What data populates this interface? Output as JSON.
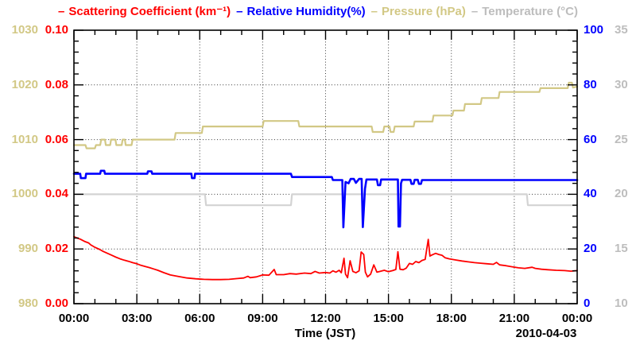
{
  "legend": {
    "items": [
      {
        "dash": "–",
        "label": "Scattering Coefficient (km⁻¹)",
        "color": "#ff0000"
      },
      {
        "dash": "–",
        "label": "Relative Humidity(%)",
        "color": "#0000ff"
      },
      {
        "dash": "–",
        "label": "Pressure (hPa)",
        "color": "#d2c885"
      },
      {
        "dash": "–",
        "label": "Temperature (°C)",
        "color": "#bdbdbd"
      }
    ]
  },
  "chart_data": {
    "type": "line",
    "x_axis": {
      "label": "Time (JST)",
      "date": "2010-04-03",
      "min_hours": 0,
      "max_hours": 24,
      "major_tick_hours": 3,
      "minor_tick_hours": 1,
      "tick_labels": [
        "00:00",
        "03:00",
        "06:00",
        "09:00",
        "12:00",
        "15:00",
        "18:00",
        "21:00",
        "00:00"
      ]
    },
    "grid": {
      "vertical": "every 3 hours, dotted",
      "horizontal": "every major division, dotted"
    },
    "y_axes": [
      {
        "id": "pressure",
        "name": "Pressure (hPa)",
        "side": "left-outer",
        "min": 980,
        "max": 1030,
        "tick_labels": [
          "1030",
          "1020",
          "1010",
          "1000",
          "990",
          "980"
        ],
        "color": "#d2c885"
      },
      {
        "id": "scattering",
        "name": "Scattering Coefficient (km⁻¹)",
        "side": "left-inner",
        "min": 0,
        "max": 0.1,
        "tick_labels": [
          "0.10",
          "0.08",
          "0.06",
          "0.04",
          "0.02",
          "0.00"
        ],
        "color": "#ff0000"
      },
      {
        "id": "humidity",
        "name": "Relative Humidity(%)",
        "side": "right-inner",
        "min": 0,
        "max": 100,
        "tick_labels": [
          "100",
          "80",
          "60",
          "40",
          "20",
          "0"
        ],
        "color": "#0000ff"
      },
      {
        "id": "temperature",
        "name": "Temperature (°C)",
        "side": "right-outer",
        "min": 10,
        "max": 35,
        "tick_labels": [
          "35",
          "30",
          "25",
          "20",
          "15",
          "10"
        ],
        "color": "#bdbdbd"
      }
    ],
    "series": [
      {
        "name": "Pressure",
        "axis": "pressure",
        "color": "#d2c885",
        "width": 2.2,
        "points": [
          [
            0,
            1009
          ],
          [
            0.55,
            1009
          ],
          [
            0.6,
            1008.4
          ],
          [
            1.0,
            1008.4
          ],
          [
            1.05,
            1009
          ],
          [
            1.25,
            1009
          ],
          [
            1.3,
            1010
          ],
          [
            1.48,
            1010
          ],
          [
            1.52,
            1009
          ],
          [
            1.73,
            1009
          ],
          [
            1.77,
            1010
          ],
          [
            1.98,
            1010
          ],
          [
            2.02,
            1009
          ],
          [
            2.28,
            1009
          ],
          [
            2.32,
            1010
          ],
          [
            2.43,
            1010
          ],
          [
            2.47,
            1009
          ],
          [
            2.75,
            1009
          ],
          [
            2.8,
            1010
          ],
          [
            4.8,
            1010
          ],
          [
            4.85,
            1011.2
          ],
          [
            6.1,
            1011.2
          ],
          [
            6.15,
            1012.4
          ],
          [
            9.0,
            1012.4
          ],
          [
            9.05,
            1013.4
          ],
          [
            10.7,
            1013.4
          ],
          [
            10.75,
            1012.4
          ],
          [
            14.2,
            1012.4
          ],
          [
            14.25,
            1011.4
          ],
          [
            14.75,
            1011.4
          ],
          [
            14.8,
            1012.4
          ],
          [
            15.05,
            1012.4
          ],
          [
            15.1,
            1011.4
          ],
          [
            15.25,
            1011.4
          ],
          [
            15.3,
            1012.4
          ],
          [
            16.2,
            1012.4
          ],
          [
            16.25,
            1013.3
          ],
          [
            17.1,
            1013.3
          ],
          [
            17.15,
            1014.4
          ],
          [
            18.05,
            1014.4
          ],
          [
            18.1,
            1015.3
          ],
          [
            18.6,
            1015.3
          ],
          [
            18.65,
            1016.5
          ],
          [
            19.4,
            1016.5
          ],
          [
            19.45,
            1017.6
          ],
          [
            20.25,
            1017.6
          ],
          [
            20.3,
            1018.7
          ],
          [
            22.2,
            1018.7
          ],
          [
            22.25,
            1019.4
          ],
          [
            23.55,
            1019.4
          ],
          [
            23.6,
            1020.4
          ],
          [
            23.75,
            1020.4
          ],
          [
            23.8,
            1019.5
          ],
          [
            24,
            1019.7
          ]
        ]
      },
      {
        "name": "Temperature",
        "axis": "temperature",
        "color": "#d3d3d3",
        "width": 2.2,
        "points": [
          [
            0,
            20
          ],
          [
            6.25,
            20
          ],
          [
            6.3,
            19
          ],
          [
            10.35,
            19
          ],
          [
            10.4,
            20
          ],
          [
            21.6,
            20
          ],
          [
            21.65,
            19
          ],
          [
            24,
            19
          ]
        ]
      },
      {
        "name": "Relative Humidity",
        "axis": "humidity",
        "color": "#0000ff",
        "width": 2.6,
        "points": [
          [
            0,
            47.5
          ],
          [
            0.3,
            47.5
          ],
          [
            0.33,
            45.9
          ],
          [
            0.55,
            45.9
          ],
          [
            0.58,
            47.5
          ],
          [
            1.25,
            47.5
          ],
          [
            1.28,
            48.6
          ],
          [
            1.45,
            48.6
          ],
          [
            1.48,
            47.5
          ],
          [
            3.5,
            47.5
          ],
          [
            3.53,
            48.4
          ],
          [
            3.7,
            48.4
          ],
          [
            3.73,
            47.5
          ],
          [
            5.6,
            47.5
          ],
          [
            5.63,
            45.9
          ],
          [
            5.75,
            45.9
          ],
          [
            5.78,
            47.5
          ],
          [
            10.35,
            47.5
          ],
          [
            10.4,
            46.3
          ],
          [
            12.3,
            46.3
          ],
          [
            12.35,
            45.2
          ],
          [
            12.8,
            45.2
          ],
          [
            12.85,
            27.9
          ],
          [
            12.95,
            44.5
          ],
          [
            13.1,
            44.0
          ],
          [
            13.2,
            45.6
          ],
          [
            13.35,
            45.6
          ],
          [
            13.45,
            44.2
          ],
          [
            13.6,
            45.6
          ],
          [
            13.72,
            45.6
          ],
          [
            13.78,
            28.0
          ],
          [
            13.88,
            42.0
          ],
          [
            13.95,
            45.4
          ],
          [
            14.45,
            45.4
          ],
          [
            14.5,
            43.3
          ],
          [
            14.6,
            43.3
          ],
          [
            14.65,
            45.4
          ],
          [
            15.45,
            45.4
          ],
          [
            15.48,
            28.2
          ],
          [
            15.55,
            28.2
          ],
          [
            15.6,
            44.0
          ],
          [
            15.65,
            45.3
          ],
          [
            16.05,
            45.3
          ],
          [
            16.1,
            43.8
          ],
          [
            16.2,
            43.8
          ],
          [
            16.25,
            45.3
          ],
          [
            16.4,
            45.3
          ],
          [
            16.45,
            43.8
          ],
          [
            16.55,
            43.8
          ],
          [
            16.6,
            45.2
          ],
          [
            24,
            45.2
          ]
        ]
      },
      {
        "name": "Scattering Coefficient",
        "axis": "scattering",
        "color": "#ff0000",
        "width": 1.8,
        "points": [
          [
            0,
            0.0245
          ],
          [
            0.15,
            0.024
          ],
          [
            0.3,
            0.0236
          ],
          [
            0.5,
            0.0228
          ],
          [
            0.7,
            0.0222
          ],
          [
            0.8,
            0.0215
          ],
          [
            1.0,
            0.0206
          ],
          [
            1.2,
            0.0199
          ],
          [
            1.4,
            0.0191
          ],
          [
            1.6,
            0.0184
          ],
          [
            1.8,
            0.0177
          ],
          [
            2.0,
            0.017
          ],
          [
            2.2,
            0.0164
          ],
          [
            2.4,
            0.0159
          ],
          [
            2.6,
            0.0155
          ],
          [
            2.8,
            0.015
          ],
          [
            3.0,
            0.0146
          ],
          [
            3.2,
            0.014
          ],
          [
            3.4,
            0.0136
          ],
          [
            3.6,
            0.0132
          ],
          [
            3.8,
            0.0127
          ],
          [
            4.0,
            0.0122
          ],
          [
            4.3,
            0.0113
          ],
          [
            4.6,
            0.0105
          ],
          [
            5.0,
            0.0099
          ],
          [
            5.4,
            0.0094
          ],
          [
            5.8,
            0.0091
          ],
          [
            6.2,
            0.0089
          ],
          [
            6.6,
            0.0088
          ],
          [
            7.0,
            0.0088
          ],
          [
            7.4,
            0.0089
          ],
          [
            7.8,
            0.0092
          ],
          [
            8.1,
            0.0094
          ],
          [
            8.3,
            0.01
          ],
          [
            8.4,
            0.0095
          ],
          [
            8.7,
            0.0098
          ],
          [
            9.0,
            0.0105
          ],
          [
            9.3,
            0.0104
          ],
          [
            9.55,
            0.0125
          ],
          [
            9.65,
            0.0106
          ],
          [
            10.0,
            0.0106
          ],
          [
            10.3,
            0.011
          ],
          [
            10.6,
            0.0108
          ],
          [
            11.0,
            0.0112
          ],
          [
            11.3,
            0.011
          ],
          [
            11.5,
            0.0118
          ],
          [
            11.7,
            0.0112
          ],
          [
            12.0,
            0.0114
          ],
          [
            12.2,
            0.0112
          ],
          [
            12.35,
            0.012
          ],
          [
            12.5,
            0.0115
          ],
          [
            12.65,
            0.0122
          ],
          [
            12.75,
            0.0113
          ],
          [
            12.88,
            0.0166
          ],
          [
            12.95,
            0.0108
          ],
          [
            13.05,
            0.0095
          ],
          [
            13.17,
            0.0157
          ],
          [
            13.3,
            0.0118
          ],
          [
            13.45,
            0.0113
          ],
          [
            13.6,
            0.012
          ],
          [
            13.7,
            0.0189
          ],
          [
            13.82,
            0.018
          ],
          [
            13.9,
            0.0115
          ],
          [
            14.0,
            0.0098
          ],
          [
            14.15,
            0.0108
          ],
          [
            14.3,
            0.0142
          ],
          [
            14.45,
            0.0115
          ],
          [
            14.6,
            0.0118
          ],
          [
            14.8,
            0.0122
          ],
          [
            15.0,
            0.0117
          ],
          [
            15.2,
            0.0121
          ],
          [
            15.35,
            0.0125
          ],
          [
            15.45,
            0.019
          ],
          [
            15.55,
            0.0126
          ],
          [
            15.7,
            0.0124
          ],
          [
            15.85,
            0.013
          ],
          [
            16.0,
            0.0147
          ],
          [
            16.15,
            0.0144
          ],
          [
            16.3,
            0.0154
          ],
          [
            16.45,
            0.015
          ],
          [
            16.6,
            0.0158
          ],
          [
            16.75,
            0.0162
          ],
          [
            16.9,
            0.0235
          ],
          [
            16.98,
            0.0174
          ],
          [
            17.1,
            0.0179
          ],
          [
            17.25,
            0.0184
          ],
          [
            17.4,
            0.018
          ],
          [
            17.55,
            0.0177
          ],
          [
            17.7,
            0.0168
          ],
          [
            17.9,
            0.0164
          ],
          [
            18.2,
            0.016
          ],
          [
            18.5,
            0.0156
          ],
          [
            18.8,
            0.0153
          ],
          [
            19.1,
            0.015
          ],
          [
            19.4,
            0.0148
          ],
          [
            19.7,
            0.0146
          ],
          [
            20.0,
            0.0144
          ],
          [
            20.15,
            0.0151
          ],
          [
            20.3,
            0.0142
          ],
          [
            20.6,
            0.0139
          ],
          [
            20.9,
            0.0135
          ],
          [
            21.2,
            0.0131
          ],
          [
            21.5,
            0.0129
          ],
          [
            21.85,
            0.0133
          ],
          [
            22.0,
            0.0129
          ],
          [
            22.3,
            0.0126
          ],
          [
            22.6,
            0.0124
          ],
          [
            23.0,
            0.0122
          ],
          [
            23.4,
            0.0121
          ],
          [
            23.7,
            0.0119
          ],
          [
            24,
            0.0121
          ]
        ]
      }
    ]
  }
}
